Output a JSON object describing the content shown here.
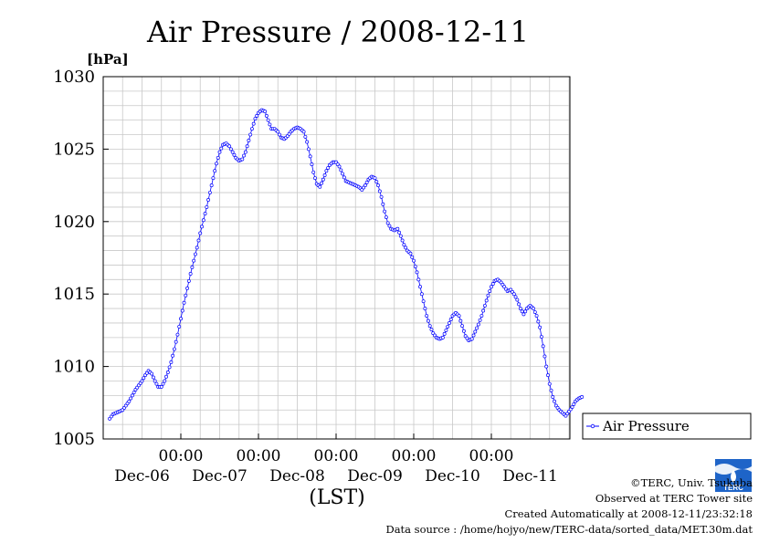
{
  "chart_data": {
    "type": "line",
    "title": "Air Pressure / 2008-12-11",
    "ylabel": "[hPa]",
    "xlabel": "(LST)",
    "ylim": [
      1005,
      1030
    ],
    "yticks": [
      "1005",
      "1010",
      "1015",
      "1020",
      "1025",
      "1030"
    ],
    "x_time_label": "00:00",
    "x_day_labels": [
      "Dec-06",
      "Dec-07",
      "Dec-08",
      "Dec-09",
      "Dec-10",
      "Dec-11"
    ],
    "grid": true,
    "legend_position": "right",
    "series": [
      {
        "name": "Air Pressure",
        "color": "#0000ff",
        "marker": "circle",
        "interval_hours": 0.5,
        "values_hourly": [
          1006.4,
          1006.7,
          1006.8,
          1006.9,
          1007.0,
          1007.3,
          1007.6,
          1008.0,
          1008.4,
          1008.7,
          1009.0,
          1009.4,
          1009.7,
          1009.5,
          1009.0,
          1008.6,
          1008.6,
          1009.0,
          1009.6,
          1010.3,
          1011.2,
          1012.2,
          1013.3,
          1014.4,
          1015.4,
          1016.4,
          1017.3,
          1018.2,
          1019.2,
          1020.1,
          1021.0,
          1022.0,
          1023.0,
          1024.0,
          1024.8,
          1025.3,
          1025.4,
          1025.2,
          1024.8,
          1024.4,
          1024.2,
          1024.3,
          1024.8,
          1025.6,
          1026.4,
          1027.1,
          1027.5,
          1027.7,
          1027.6,
          1027.0,
          1026.4,
          1026.4,
          1026.2,
          1025.8,
          1025.7,
          1025.9,
          1026.2,
          1026.4,
          1026.5,
          1026.4,
          1026.2,
          1025.5,
          1024.5,
          1023.4,
          1022.6,
          1022.4,
          1022.9,
          1023.5,
          1023.9,
          1024.1,
          1024.1,
          1023.8,
          1023.3,
          1022.8,
          1022.7,
          1022.6,
          1022.5,
          1022.4,
          1022.2,
          1022.5,
          1022.9,
          1023.1,
          1023.0,
          1022.5,
          1021.7,
          1020.7,
          1019.9,
          1019.5,
          1019.4,
          1019.5,
          1019.0,
          1018.4,
          1018.0,
          1017.8,
          1017.3,
          1016.5,
          1015.5,
          1014.5,
          1013.5,
          1012.8,
          1012.3,
          1012.0,
          1011.9,
          1012.0,
          1012.5,
          1013.0,
          1013.5,
          1013.7,
          1013.5,
          1012.8,
          1012.1,
          1011.8,
          1011.9,
          1012.4,
          1012.9,
          1013.5,
          1014.2,
          1014.9,
          1015.5,
          1015.9,
          1016.0,
          1015.8,
          1015.5,
          1015.2,
          1015.3,
          1015.0,
          1014.6,
          1014.0,
          1013.6,
          1014.0,
          1014.2,
          1014.0,
          1013.5,
          1012.7,
          1011.4,
          1010.0,
          1008.8,
          1007.9,
          1007.3,
          1007.0,
          1006.8,
          1006.6,
          1006.9,
          1007.2,
          1007.6,
          1007.8,
          1007.9
        ]
      }
    ]
  },
  "footer": {
    "copyright": "©TERC, Univ. Tsukuba",
    "observed": "Observed at TERC Tower site",
    "created": "Created Automatically at 2008-12-11/23:32:18",
    "source": "Data source : /home/hojyo/new/TERC-data/sorted_data/MET.30m.dat",
    "logo_text": "TERC"
  }
}
